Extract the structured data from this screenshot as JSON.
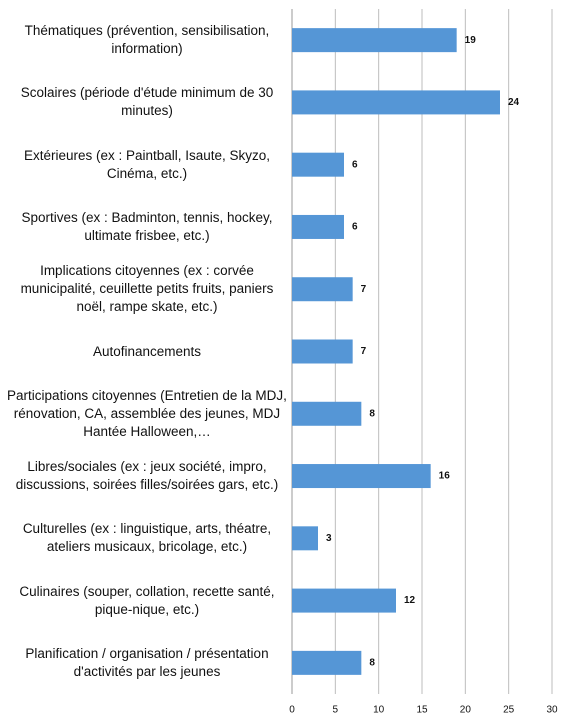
{
  "chart_data": {
    "type": "barh",
    "categories": [
      "Thématiques (prévention, sensibilisation, information)",
      "Scolaires (période d'étude minimum de 30 minutes)",
      "Extérieures (ex : Paintball, Isaute, Skyzo, Cinéma, etc.)",
      "Sportives (ex : Badminton, tennis, hockey, ultimate frisbee, etc.)",
      "Implications citoyennes (ex : corvée municipalité, ceuillette petits fruits, paniers noël, rampe skate, etc.)",
      "Autofinancements",
      "Participations citoyennes (Entretien de la MDJ, rénovation, CA, assemblée des jeunes, MDJ Hantée Halloween,…",
      "Libres/sociales (ex : jeux société, impro, discussions, soirées filles/soirées gars, etc.)",
      "Culturelles (ex : linguistique, arts, théatre, ateliers musicaux, bricolage, etc.)",
      "Culinaires (souper, collation, recette santé, pique-nique, etc.)",
      "Planification / organisation / présentation d'activités par les jeunes"
    ],
    "values": [
      19,
      24,
      6,
      6,
      7,
      7,
      8,
      16,
      3,
      12,
      8
    ],
    "color": "#5596d6",
    "xlim": [
      0,
      30
    ],
    "xticks": [
      0,
      5,
      10,
      15,
      20,
      25,
      30
    ],
    "grid": true
  }
}
